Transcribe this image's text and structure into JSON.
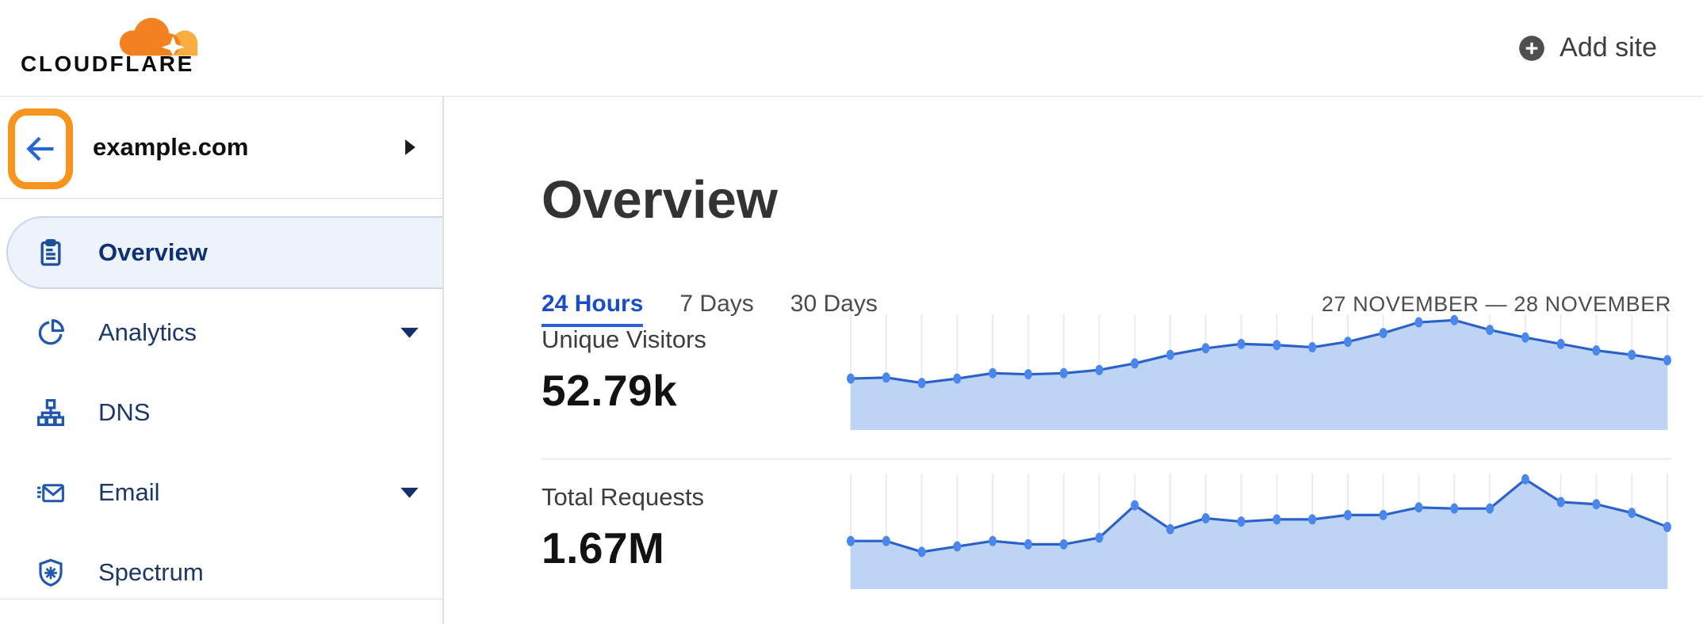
{
  "header": {
    "brand": "CLOUDFLARE",
    "add_site_label": "Add site"
  },
  "sidebar": {
    "site_name": "example.com",
    "items": [
      {
        "label": "Overview",
        "icon": "clipboard-icon",
        "selected": true,
        "caret": false
      },
      {
        "label": "Analytics",
        "icon": "pie-chart-icon",
        "selected": false,
        "caret": true
      },
      {
        "label": "DNS",
        "icon": "dns-tree-icon",
        "selected": false,
        "caret": false
      },
      {
        "label": "Email",
        "icon": "email-icon",
        "selected": false,
        "caret": true
      },
      {
        "label": "Spectrum",
        "icon": "shield-icon",
        "selected": false,
        "caret": false
      }
    ]
  },
  "main": {
    "title": "Overview",
    "tabs": [
      {
        "label": "24 Hours",
        "active": true
      },
      {
        "label": "7 Days",
        "active": false
      },
      {
        "label": "30 Days",
        "active": false
      }
    ],
    "date_range": "27 NOVEMBER — 28 NOVEMBER"
  },
  "colors": {
    "brand_orange": "#F48120",
    "brand_orange_light": "#FAAD3F",
    "annotation_orange": "#F7941E",
    "active_tab_blue": "#1B4EC6",
    "icon_blue": "#2058B0",
    "nav_label_navy": "#1B3866",
    "selected_item_bg": "#EDF2FB",
    "selected_item_border": "#C7D7F1",
    "chart_dot": "#4A86EC",
    "chart_line": "#2B62C9",
    "chart_fill": "#BED4F4",
    "chart_grid": "#E8ECF3"
  },
  "chart_data": [
    {
      "type": "area",
      "title": "Unique Visitors",
      "value_label": "52.79k",
      "x_description": "24 hourly points over 27 November — 28 November (axis tick labels not shown)",
      "x_tick_labels": [],
      "values_pct_of_peak": [
        46,
        47,
        42,
        46,
        51,
        50,
        51,
        54,
        60,
        68,
        74,
        78,
        77,
        75,
        80,
        88,
        98,
        100,
        91,
        84,
        78,
        72,
        68,
        63
      ],
      "ylim": [
        0,
        100
      ],
      "grid": "vertical gridlines at each point",
      "legend": "none"
    },
    {
      "type": "area",
      "title": "Total Requests",
      "value_label": "1.67M",
      "x_description": "24 hourly points over 27 November — 28 November (axis tick labels not shown)",
      "x_tick_labels": [],
      "values_pct_of_peak": [
        43,
        43,
        33,
        38,
        43,
        40,
        40,
        46,
        76,
        54,
        64,
        61,
        63,
        63,
        67,
        67,
        74,
        73,
        73,
        100,
        79,
        77,
        69,
        56
      ],
      "ylim": [
        0,
        100
      ],
      "grid": "vertical gridlines at each point",
      "legend": "none"
    }
  ]
}
